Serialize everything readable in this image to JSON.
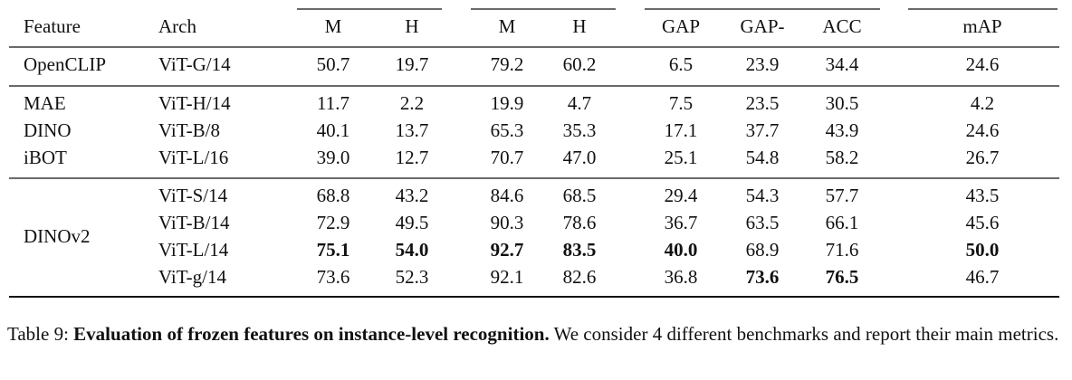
{
  "table": {
    "header": [
      "Feature",
      "Arch",
      "M",
      "H",
      "M",
      "H",
      "GAP",
      "GAP-",
      "ACC",
      "mAP"
    ],
    "groups": [
      {
        "feature": "OpenCLIP",
        "rows": [
          {
            "arch": "ViT-G/14",
            "values": [
              "50.7",
              "19.7",
              "79.2",
              "60.2",
              "6.5",
              "23.9",
              "34.4",
              "24.6"
            ],
            "bold": []
          }
        ]
      },
      {
        "rows": [
          {
            "feature": "MAE",
            "arch": "ViT-H/14",
            "values": [
              "11.7",
              "2.2",
              "19.9",
              "4.7",
              "7.5",
              "23.5",
              "30.5",
              "4.2"
            ],
            "bold": []
          },
          {
            "feature": "DINO",
            "arch": "ViT-B/8",
            "values": [
              "40.1",
              "13.7",
              "65.3",
              "35.3",
              "17.1",
              "37.7",
              "43.9",
              "24.6"
            ],
            "bold": []
          },
          {
            "feature": "iBOT",
            "arch": "ViT-L/16",
            "values": [
              "39.0",
              "12.7",
              "70.7",
              "47.0",
              "25.1",
              "54.8",
              "58.2",
              "26.7"
            ],
            "bold": []
          }
        ]
      },
      {
        "feature": "DINOv2",
        "rows": [
          {
            "arch": "ViT-S/14",
            "values": [
              "68.8",
              "43.2",
              "84.6",
              "68.5",
              "29.4",
              "54.3",
              "57.7",
              "43.5"
            ],
            "bold": []
          },
          {
            "arch": "ViT-B/14",
            "values": [
              "72.9",
              "49.5",
              "90.3",
              "78.6",
              "36.7",
              "63.5",
              "66.1",
              "45.6"
            ],
            "bold": []
          },
          {
            "arch": "ViT-L/14",
            "values": [
              "75.1",
              "54.0",
              "92.7",
              "83.5",
              "40.0",
              "68.9",
              "71.6",
              "50.0"
            ],
            "bold": [
              0,
              1,
              2,
              3,
              4,
              7
            ]
          },
          {
            "arch": "ViT-g/14",
            "values": [
              "73.6",
              "52.3",
              "92.1",
              "82.6",
              "36.8",
              "73.6",
              "76.5",
              "46.7"
            ],
            "bold": [
              5,
              6
            ]
          }
        ]
      }
    ]
  },
  "caption": {
    "label": "Table 9:",
    "title": "Evaluation of frozen features on instance-level recognition.",
    "text": "We consider 4 different benchmarks and report their main metrics."
  }
}
